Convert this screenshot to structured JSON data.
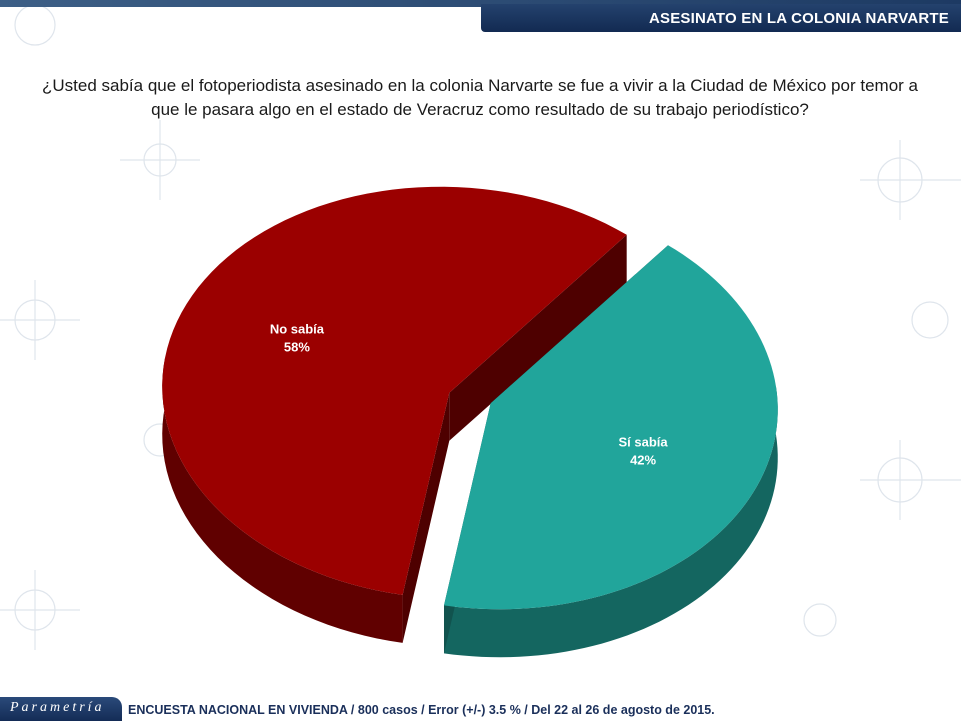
{
  "header": {
    "title": "ASESINATO EN LA COLONIA NARVARTE"
  },
  "question": "¿Usted sabía que el fotoperiodista asesinado en la colonia Narvarte se fue a vivir a la Ciudad de México por temor a que le pasara algo en el estado de Veracruz como resultado de su trabajo periodístico?",
  "chart_data": {
    "type": "pie",
    "categories": [
      "No sabía",
      "Sí sabía"
    ],
    "values": [
      58,
      42
    ],
    "value_labels": [
      "58%",
      "42%"
    ],
    "colors": [
      "#9b0000",
      "#21a59b"
    ],
    "style": "3d-exploded"
  },
  "footer": {
    "brand": "Parametría",
    "note": "ENCUESTA NACIONAL EN VIVIENDA / 800 casos / Error (+/-) 3.5 % / Del 22 al 26 de agosto de 2015."
  }
}
